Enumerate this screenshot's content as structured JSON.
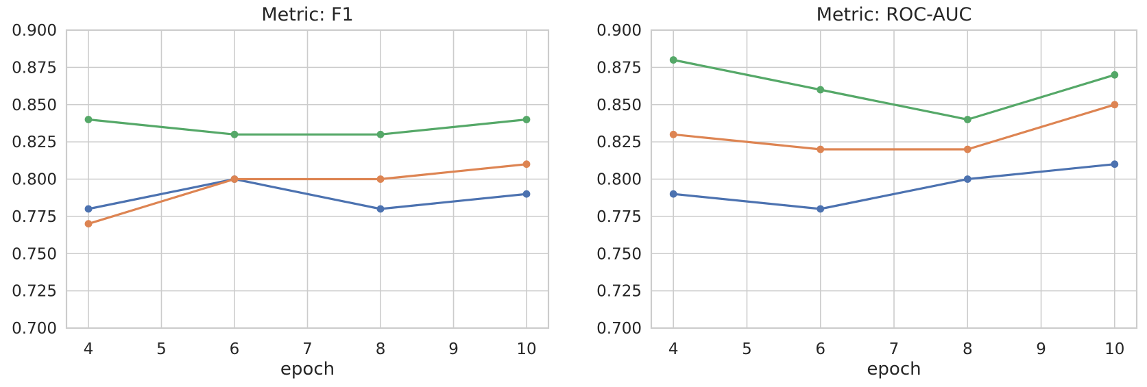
{
  "figure": {
    "background": "#ffffff",
    "text_color": "#262626",
    "grid_color": "#cccccc",
    "spine_color": "#cccccc"
  },
  "chart_data": [
    {
      "type": "line",
      "title": "Metric: F1",
      "xlabel": "epoch",
      "ylabel": "",
      "x": [
        4,
        6,
        8,
        10
      ],
      "xticks": [
        4,
        5,
        6,
        7,
        8,
        9,
        10
      ],
      "yticks": [
        0.7,
        0.725,
        0.75,
        0.775,
        0.8,
        0.825,
        0.85,
        0.875,
        0.9
      ],
      "xlim": [
        3.7,
        10.3
      ],
      "ylim": [
        0.7,
        0.9
      ],
      "grid": true,
      "legend": false,
      "marker": "circle",
      "series": [
        {
          "name": "blue-series",
          "color": "#4C72B0",
          "values": [
            0.78,
            0.8,
            0.78,
            0.79
          ]
        },
        {
          "name": "orange-series",
          "color": "#DD8452",
          "values": [
            0.77,
            0.8,
            0.8,
            0.81
          ]
        },
        {
          "name": "green-series",
          "color": "#55A868",
          "values": [
            0.84,
            0.83,
            0.83,
            0.84
          ]
        }
      ]
    },
    {
      "type": "line",
      "title": "Metric: ROC-AUC",
      "xlabel": "epoch",
      "ylabel": "",
      "x": [
        4,
        6,
        8,
        10
      ],
      "xticks": [
        4,
        5,
        6,
        7,
        8,
        9,
        10
      ],
      "yticks": [
        0.7,
        0.725,
        0.75,
        0.775,
        0.8,
        0.825,
        0.85,
        0.875,
        0.9
      ],
      "xlim": [
        3.7,
        10.3
      ],
      "ylim": [
        0.7,
        0.9
      ],
      "grid": true,
      "legend": false,
      "marker": "circle",
      "series": [
        {
          "name": "blue-series",
          "color": "#4C72B0",
          "values": [
            0.79,
            0.78,
            0.8,
            0.81
          ]
        },
        {
          "name": "orange-series",
          "color": "#DD8452",
          "values": [
            0.83,
            0.82,
            0.82,
            0.85
          ]
        },
        {
          "name": "green-series",
          "color": "#55A868",
          "values": [
            0.88,
            0.86,
            0.84,
            0.87
          ]
        }
      ]
    }
  ]
}
